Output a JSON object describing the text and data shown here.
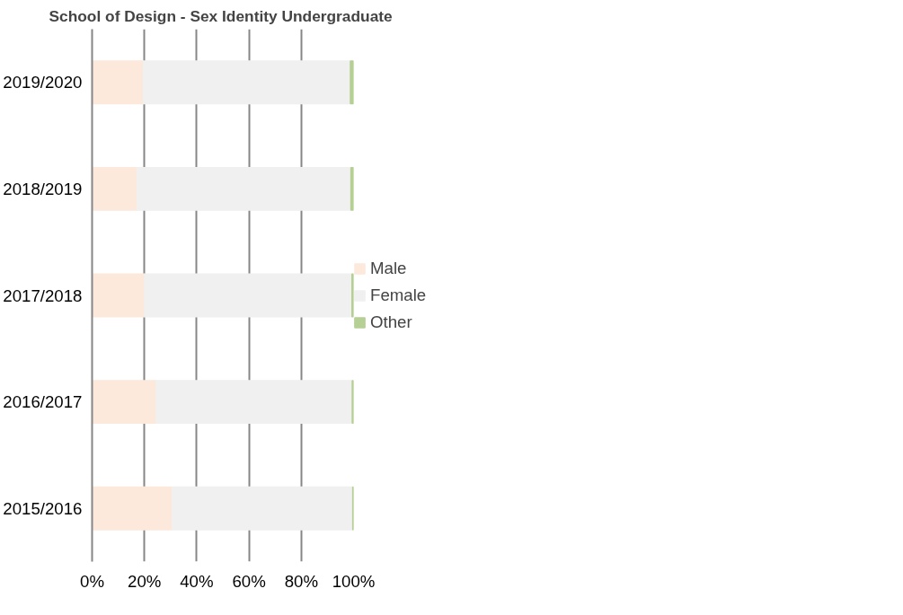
{
  "chart_data": {
    "type": "bar",
    "orientation": "horizontal",
    "stacked": true,
    "title": "School of Design -  Sex Identity Undergraduate",
    "categories": [
      "2019/2020",
      "2018/2019",
      "2017/2018",
      "2016/2017",
      "2015/2016"
    ],
    "series": [
      {
        "name": "Male",
        "color": "#fce9dc",
        "values": [
          19.6,
          17.3,
          20.1,
          24.6,
          30.7
        ]
      },
      {
        "name": "Female",
        "color": "#f0f0f0",
        "values": [
          79.2,
          81.7,
          79.3,
          74.9,
          69.0
        ]
      },
      {
        "name": "Other",
        "color": "#b5cf94",
        "values": [
          1.2,
          1.0,
          0.6,
          0.5,
          0.3
        ]
      }
    ],
    "xlim": [
      0,
      100
    ],
    "xticks": [
      {
        "value": 0,
        "label": "0%"
      },
      {
        "value": 20,
        "label": "20%"
      },
      {
        "value": 40,
        "label": "40%"
      },
      {
        "value": 60,
        "label": "60%"
      },
      {
        "value": 80,
        "label": "80%"
      },
      {
        "value": 100,
        "label": "100%"
      }
    ],
    "grid": "x",
    "legend": "right"
  }
}
